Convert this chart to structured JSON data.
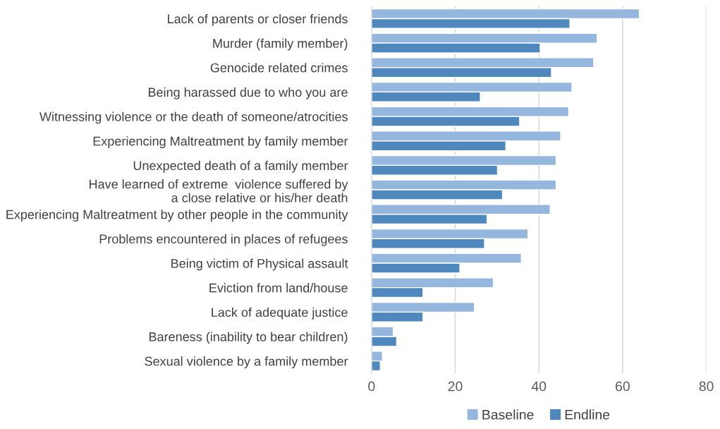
{
  "chart_data": {
    "type": "bar",
    "orientation": "horizontal",
    "categories": [
      "Lack of parents or closer friends",
      "Murder (family member)",
      "Genocide related crimes",
      "Being harassed due to who you are",
      "Witnessing violence or the death of someone/atrocities",
      "Experiencing Maltreatment by family member",
      "Unexpected death of a family member",
      "Have learned of extreme  violence suffered by\na close relative or his/her death",
      "Experiencing Maltreatment by other people in the community",
      "Problems encountered in places of refugees",
      "Being victim of Physical assault",
      "Eviction from land/house",
      "Lack of adequate justice",
      "Bareness (inability to bear children)",
      "Sexual violence by a family member"
    ],
    "series": [
      {
        "name": "Baseline",
        "color": "#95b7de",
        "values": [
          64.0,
          53.9,
          53.1,
          47.9,
          47.1,
          45.2,
          44.1,
          44.1,
          42.7,
          37.4,
          35.8,
          29.1,
          24.6,
          5.2,
          2.6
        ]
      },
      {
        "name": "Endline",
        "color": "#4f88bd",
        "values": [
          47.4,
          40.3,
          43.0,
          26.0,
          35.4,
          32.1,
          30.1,
          31.3,
          27.6,
          27.0,
          21.1,
          12.3,
          12.3,
          6.0,
          2.1
        ]
      }
    ],
    "xlim": [
      0,
      80
    ],
    "xticks": [
      0,
      20,
      40,
      60,
      80
    ],
    "grid": "x",
    "legend": "bottom"
  }
}
